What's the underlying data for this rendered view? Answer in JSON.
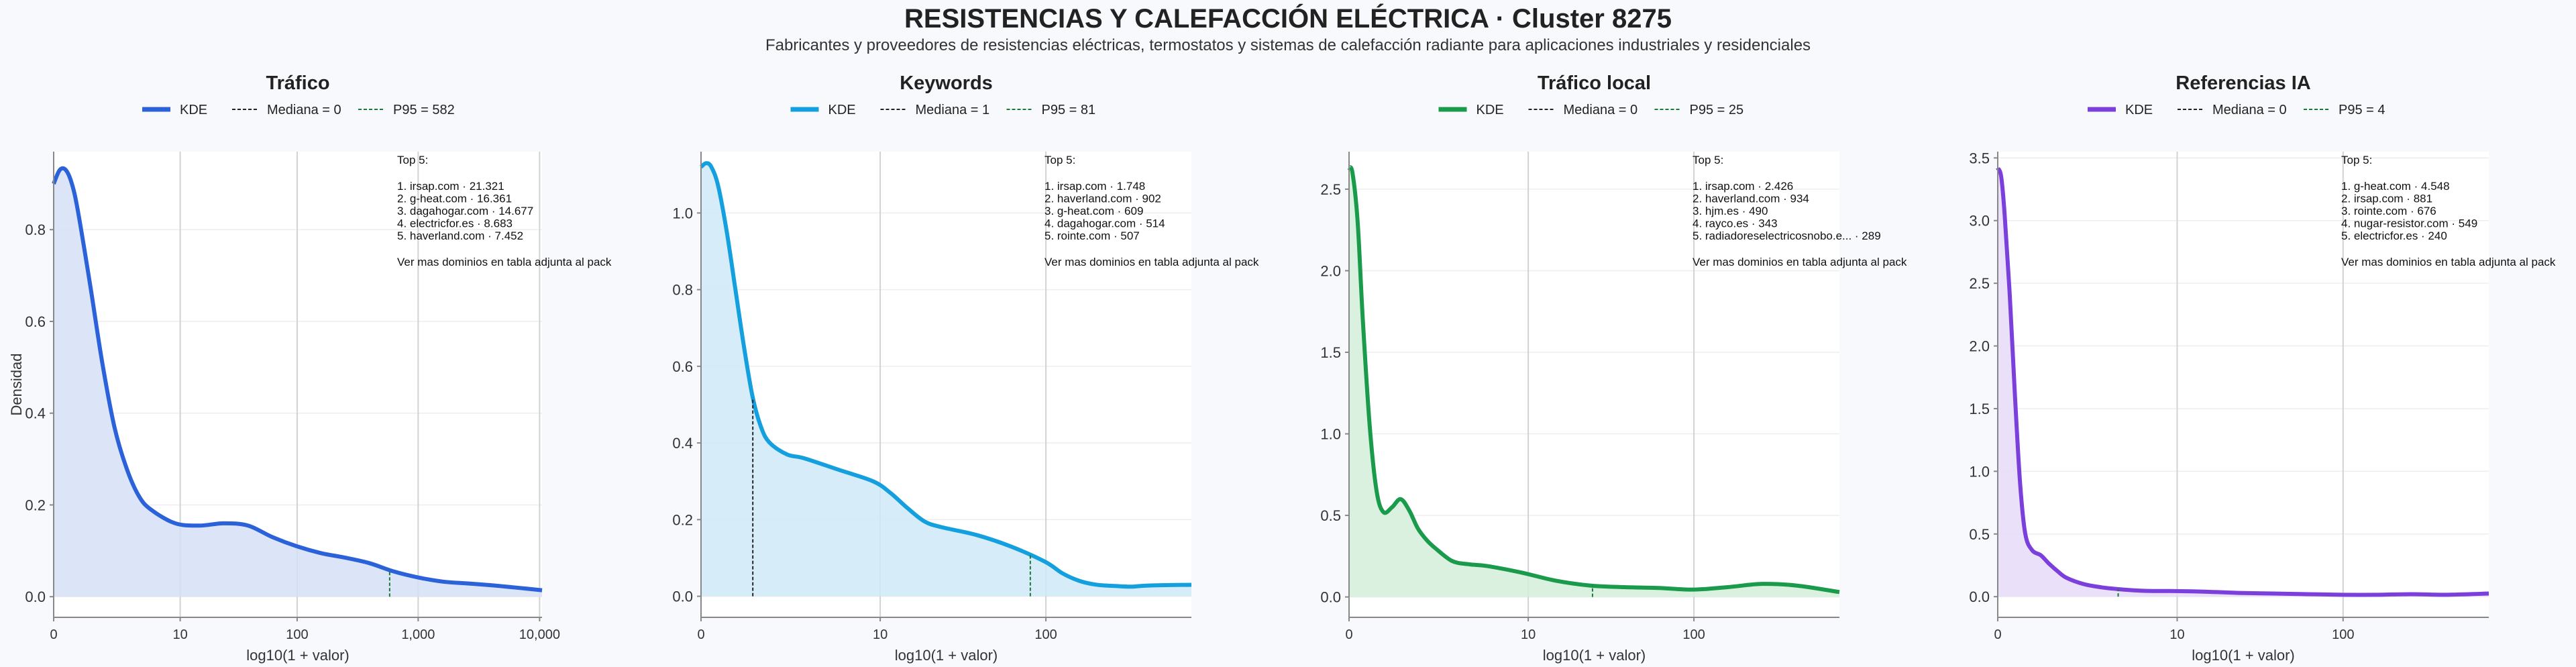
{
  "title": "RESISTENCIAS Y CALEFACCIÓN ELÉCTRICA · Cluster 8275",
  "subtitle": "Fabricantes y proveedores de resistencias eléctricas, termostatos y sistemas de calefacción radiante para aplicaciones industriales y residenciales",
  "chart_data": [
    {
      "type": "area",
      "title": "Tráfico",
      "color": "#2b62d9",
      "fill": "#d6e0f7",
      "xlabel": "log10(1 + valor)",
      "ylabel": "Densidad",
      "xlim": [
        0,
        4.02
      ],
      "ylim": [
        -0.045,
        0.97
      ],
      "xticks": [
        {
          "v": 0,
          "label": "0"
        },
        {
          "v": 1.0414,
          "label": "10"
        },
        {
          "v": 2.0043,
          "label": "100"
        },
        {
          "v": 3.0004,
          "label": "1,000"
        },
        {
          "v": 4.0,
          "label": "10,000"
        }
      ],
      "yticks": [
        {
          "v": 0.0,
          "label": "0.0"
        },
        {
          "v": 0.2,
          "label": "0.2"
        },
        {
          "v": 0.4,
          "label": "0.4"
        },
        {
          "v": 0.6,
          "label": "0.6"
        },
        {
          "v": 0.8,
          "label": "0.8"
        }
      ],
      "legend": [
        "KDE",
        "Mediana = 0",
        "P95 = 582"
      ],
      "median_x": 0,
      "p95_x": 2.7657,
      "kde_x": [
        0,
        0.05,
        0.1,
        0.15,
        0.2,
        0.3,
        0.4,
        0.5,
        0.6,
        0.7,
        0.8,
        1.0,
        1.2,
        1.4,
        1.6,
        1.8,
        2.0,
        2.2,
        2.4,
        2.6,
        2.8,
        3.0,
        3.2,
        3.4,
        3.6,
        3.8,
        4.02
      ],
      "kde_y": [
        0.9,
        0.93,
        0.93,
        0.9,
        0.84,
        0.68,
        0.51,
        0.37,
        0.28,
        0.22,
        0.19,
        0.16,
        0.155,
        0.16,
        0.155,
        0.13,
        0.11,
        0.095,
        0.085,
        0.073,
        0.055,
        0.042,
        0.033,
        0.029,
        0.025,
        0.02,
        0.014
      ],
      "top5_header": "Top 5:",
      "top5": [
        "1. irsap.com · 21.321",
        "2. g-heat.com · 16.361",
        "3. dagahogar.com · 14.677",
        "4. electricfor.es · 8.683",
        "5. haverland.com · 7.452"
      ],
      "note": "Ver mas dominios en tabla adjunta al pack"
    },
    {
      "type": "area",
      "title": "Keywords",
      "color": "#14a0de",
      "fill": "#cfeaf8",
      "xlabel": "log10(1 + valor)",
      "ylabel": "",
      "xlim": [
        0,
        2.85
      ],
      "ylim": [
        -0.055,
        1.16
      ],
      "xticks": [
        {
          "v": 0,
          "label": "0"
        },
        {
          "v": 1.0414,
          "label": "10"
        },
        {
          "v": 2.0043,
          "label": "100"
        }
      ],
      "yticks": [
        {
          "v": 0.0,
          "label": "0.0"
        },
        {
          "v": 0.2,
          "label": "0.2"
        },
        {
          "v": 0.4,
          "label": "0.4"
        },
        {
          "v": 0.6,
          "label": "0.6"
        },
        {
          "v": 0.8,
          "label": "0.8"
        },
        {
          "v": 1.0,
          "label": "1.0"
        }
      ],
      "legend": [
        "KDE",
        "Mediana = 1",
        "P95 = 81"
      ],
      "median_x": 0.301,
      "p95_x": 1.9138,
      "kde_x": [
        0,
        0.03,
        0.06,
        0.1,
        0.15,
        0.2,
        0.25,
        0.3,
        0.35,
        0.4,
        0.5,
        0.6,
        0.8,
        1.0,
        1.1,
        1.2,
        1.3,
        1.4,
        1.6,
        1.8,
        2.0,
        2.1,
        2.2,
        2.3,
        2.4,
        2.5,
        2.6,
        2.85
      ],
      "kde_y": [
        1.12,
        1.13,
        1.12,
        1.07,
        0.95,
        0.8,
        0.65,
        0.52,
        0.44,
        0.4,
        0.37,
        0.36,
        0.33,
        0.3,
        0.27,
        0.23,
        0.195,
        0.18,
        0.16,
        0.13,
        0.09,
        0.06,
        0.04,
        0.03,
        0.027,
        0.025,
        0.028,
        0.03
      ],
      "top5_header": "Top 5:",
      "top5": [
        "1. irsap.com · 1.748",
        "2. haverland.com · 902",
        "3. g-heat.com · 609",
        "4. dagahogar.com · 514",
        "5. rointe.com · 507"
      ],
      "note": "Ver mas dominios en tabla adjunta al pack"
    },
    {
      "type": "area",
      "title": "Tráfico local",
      "color": "#1a9a4b",
      "fill": "#d3eedb",
      "xlabel": "log10(1 + valor)",
      "ylabel": "",
      "xlim": [
        0,
        2.85
      ],
      "ylim": [
        -0.125,
        2.73
      ],
      "xticks": [
        {
          "v": 0,
          "label": "0"
        },
        {
          "v": 1.0414,
          "label": "10"
        },
        {
          "v": 2.0043,
          "label": "100"
        }
      ],
      "yticks": [
        {
          "v": 0.0,
          "label": "0.0"
        },
        {
          "v": 0.5,
          "label": "0.5"
        },
        {
          "v": 1.0,
          "label": "1.0"
        },
        {
          "v": 1.5,
          "label": "1.5"
        },
        {
          "v": 2.0,
          "label": "2.0"
        },
        {
          "v": 2.5,
          "label": "2.5"
        }
      ],
      "legend": [
        "KDE",
        "Mediana = 0",
        "P95 = 25"
      ],
      "median_x": 0,
      "p95_x": 1.415,
      "kde_x": [
        0,
        0.02,
        0.05,
        0.08,
        0.12,
        0.16,
        0.2,
        0.25,
        0.3,
        0.35,
        0.4,
        0.45,
        0.5,
        0.6,
        0.7,
        0.8,
        1.0,
        1.2,
        1.4,
        1.6,
        1.8,
        2.0,
        2.2,
        2.4,
        2.6,
        2.85
      ],
      "kde_y": [
        2.63,
        2.6,
        2.3,
        1.7,
        1.05,
        0.65,
        0.52,
        0.55,
        0.6,
        0.53,
        0.42,
        0.35,
        0.3,
        0.22,
        0.2,
        0.19,
        0.15,
        0.1,
        0.07,
        0.06,
        0.055,
        0.045,
        0.06,
        0.08,
        0.07,
        0.03
      ],
      "top5_header": "Top 5:",
      "top5": [
        "1. irsap.com · 2.426",
        "2. haverland.com · 934",
        "3. hjm.es · 490",
        "4. rayco.es · 343",
        "5. radiadoreselectricosnobo.e... · 289"
      ],
      "note": "Ver mas dominios en tabla adjunta al pack"
    },
    {
      "type": "area",
      "title": "Referencias IA",
      "color": "#7b3fdc",
      "fill": "#e8daf8",
      "xlabel": "log10(1 + valor)",
      "ylabel": "",
      "xlim": [
        0,
        2.85
      ],
      "ylim": [
        -0.165,
        3.55
      ],
      "xticks": [
        {
          "v": 0,
          "label": "0"
        },
        {
          "v": 1.0414,
          "label": "10"
        },
        {
          "v": 2.0043,
          "label": "100"
        }
      ],
      "yticks": [
        {
          "v": 0.0,
          "label": "0.0"
        },
        {
          "v": 0.5,
          "label": "0.5"
        },
        {
          "v": 1.0,
          "label": "1.0"
        },
        {
          "v": 1.5,
          "label": "1.5"
        },
        {
          "v": 2.0,
          "label": "2.0"
        },
        {
          "v": 2.5,
          "label": "2.5"
        },
        {
          "v": 3.0,
          "label": "3.0"
        },
        {
          "v": 3.5,
          "label": "3.5"
        }
      ],
      "legend": [
        "KDE",
        "Mediana = 0",
        "P95 = 4"
      ],
      "median_x": 0,
      "p95_x": 0.699,
      "kde_x": [
        0,
        0.02,
        0.04,
        0.07,
        0.1,
        0.13,
        0.16,
        0.2,
        0.25,
        0.3,
        0.35,
        0.4,
        0.5,
        0.6,
        0.7,
        0.8,
        0.9,
        1.0,
        1.2,
        1.4,
        1.6,
        1.8,
        2.0,
        2.2,
        2.4,
        2.6,
        2.85
      ],
      "kde_y": [
        3.42,
        3.35,
        3.05,
        2.4,
        1.6,
        0.9,
        0.5,
        0.37,
        0.33,
        0.26,
        0.2,
        0.15,
        0.1,
        0.075,
        0.06,
        0.05,
        0.045,
        0.045,
        0.04,
        0.03,
        0.025,
        0.02,
        0.015,
        0.015,
        0.02,
        0.015,
        0.025
      ],
      "top5_header": "Top 5:",
      "top5": [
        "1. g-heat.com · 4.548",
        "2. irsap.com · 881",
        "3. rointe.com · 676",
        "4. nugar-resistor.com · 549",
        "5. electricfor.es · 240"
      ],
      "note": "Ver mas dominios en tabla adjunta al pack"
    }
  ]
}
